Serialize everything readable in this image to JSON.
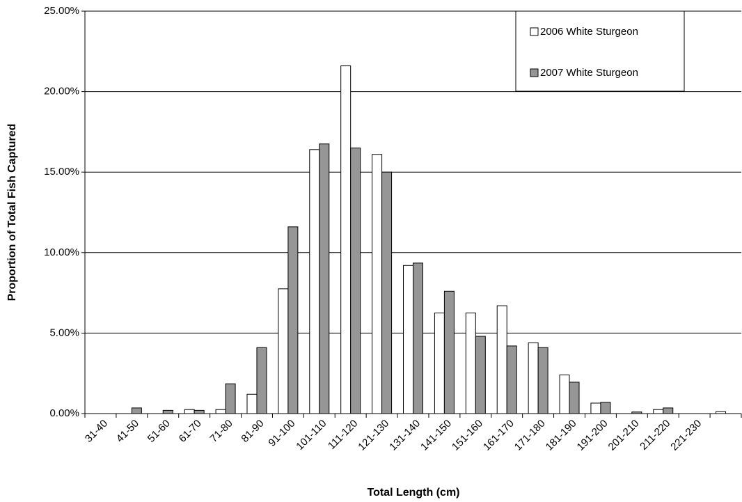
{
  "chart_data": {
    "type": "bar",
    "x_label": "Total Length (cm)",
    "y_label": "Proportion of Total Fish Captured",
    "categories": [
      "31-40",
      "41-50",
      "51-60",
      "61-70",
      "71-80",
      "81-90",
      "91-100",
      "101-110",
      "111-120",
      "121-130",
      "131-140",
      "141-150",
      "151-160",
      "161-170",
      "171-180",
      "181-190",
      "191-200",
      "201-210",
      "211-220",
      "221-230",
      null
    ],
    "series": [
      {
        "name": "2006 White Sturgeon",
        "color": "#ffffff",
        "values": [
          0,
          0,
          0,
          0.25,
          0.25,
          1.2,
          7.75,
          16.4,
          21.6,
          16.1,
          9.2,
          6.25,
          6.25,
          6.7,
          4.4,
          2.4,
          0.65,
          0,
          0.25,
          0,
          0.12
        ]
      },
      {
        "name": "2007 White Sturgeon",
        "color": "#969696",
        "values": [
          0,
          0.35,
          0.2,
          0.2,
          1.85,
          4.1,
          11.6,
          16.75,
          16.5,
          15.0,
          9.35,
          7.6,
          4.8,
          4.2,
          4.1,
          1.95,
          0.7,
          0.1,
          0.35,
          0,
          0
        ]
      }
    ],
    "ylim": [
      0,
      25
    ],
    "yticks": [
      {
        "value": 0,
        "label": "0.00%"
      },
      {
        "value": 5,
        "label": "5.00%"
      },
      {
        "value": 10,
        "label": "10.00%"
      },
      {
        "value": 15,
        "label": "15.00%"
      },
      {
        "value": 20,
        "label": "20.00%"
      },
      {
        "value": 25,
        "label": "25.00%"
      }
    ],
    "grid": true,
    "legend": "top-right"
  }
}
